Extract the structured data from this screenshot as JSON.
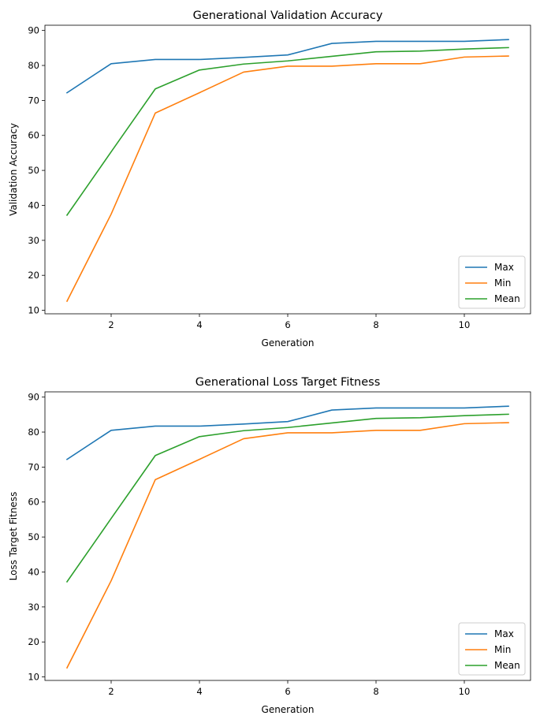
{
  "chart_data": [
    {
      "type": "line",
      "title": "Generational Validation Accuracy",
      "xlabel": "Generation",
      "ylabel": "Validation Accuracy",
      "xlim": [
        0.5,
        11.5
      ],
      "ylim": [
        9,
        91.5
      ],
      "xticks": [
        2,
        4,
        6,
        8,
        10
      ],
      "yticks": [
        10,
        20,
        30,
        40,
        50,
        60,
        70,
        80,
        90
      ],
      "grid": false,
      "legend": "bottom-right",
      "x": [
        1,
        2,
        3,
        4,
        5,
        6,
        7,
        8,
        9,
        10,
        11
      ],
      "series": [
        {
          "name": "Max",
          "color": "#1f77b4",
          "values": [
            72.2,
            80.5,
            81.7,
            81.7,
            82.3,
            83.0,
            86.3,
            86.9,
            86.9,
            86.9,
            87.4
          ]
        },
        {
          "name": "Min",
          "color": "#ff7f0e",
          "values": [
            12.6,
            37.5,
            66.4,
            72.2,
            78.1,
            79.8,
            79.8,
            80.5,
            80.5,
            82.4,
            82.7
          ]
        },
        {
          "name": "Mean",
          "color": "#2ca02c",
          "values": [
            37.2,
            55.3,
            73.3,
            78.7,
            80.4,
            81.3,
            82.6,
            83.9,
            84.1,
            84.7,
            85.1
          ]
        }
      ]
    },
    {
      "type": "line",
      "title": "Generational Loss Target Fitness",
      "xlabel": "Generation",
      "ylabel": "Loss Target Fitness",
      "xlim": [
        0.5,
        11.5
      ],
      "ylim": [
        9,
        91.5
      ],
      "xticks": [
        2,
        4,
        6,
        8,
        10
      ],
      "yticks": [
        10,
        20,
        30,
        40,
        50,
        60,
        70,
        80,
        90
      ],
      "grid": false,
      "legend": "bottom-right",
      "x": [
        1,
        2,
        3,
        4,
        5,
        6,
        7,
        8,
        9,
        10,
        11
      ],
      "series": [
        {
          "name": "Max",
          "color": "#1f77b4",
          "values": [
            72.2,
            80.5,
            81.7,
            81.7,
            82.3,
            83.0,
            86.3,
            86.9,
            86.9,
            86.9,
            87.4
          ]
        },
        {
          "name": "Min",
          "color": "#ff7f0e",
          "values": [
            12.6,
            37.5,
            66.4,
            72.2,
            78.1,
            79.8,
            79.8,
            80.5,
            80.5,
            82.4,
            82.7
          ]
        },
        {
          "name": "Mean",
          "color": "#2ca02c",
          "values": [
            37.2,
            55.3,
            73.3,
            78.7,
            80.4,
            81.3,
            82.6,
            83.9,
            84.1,
            84.7,
            85.1
          ]
        }
      ]
    }
  ]
}
